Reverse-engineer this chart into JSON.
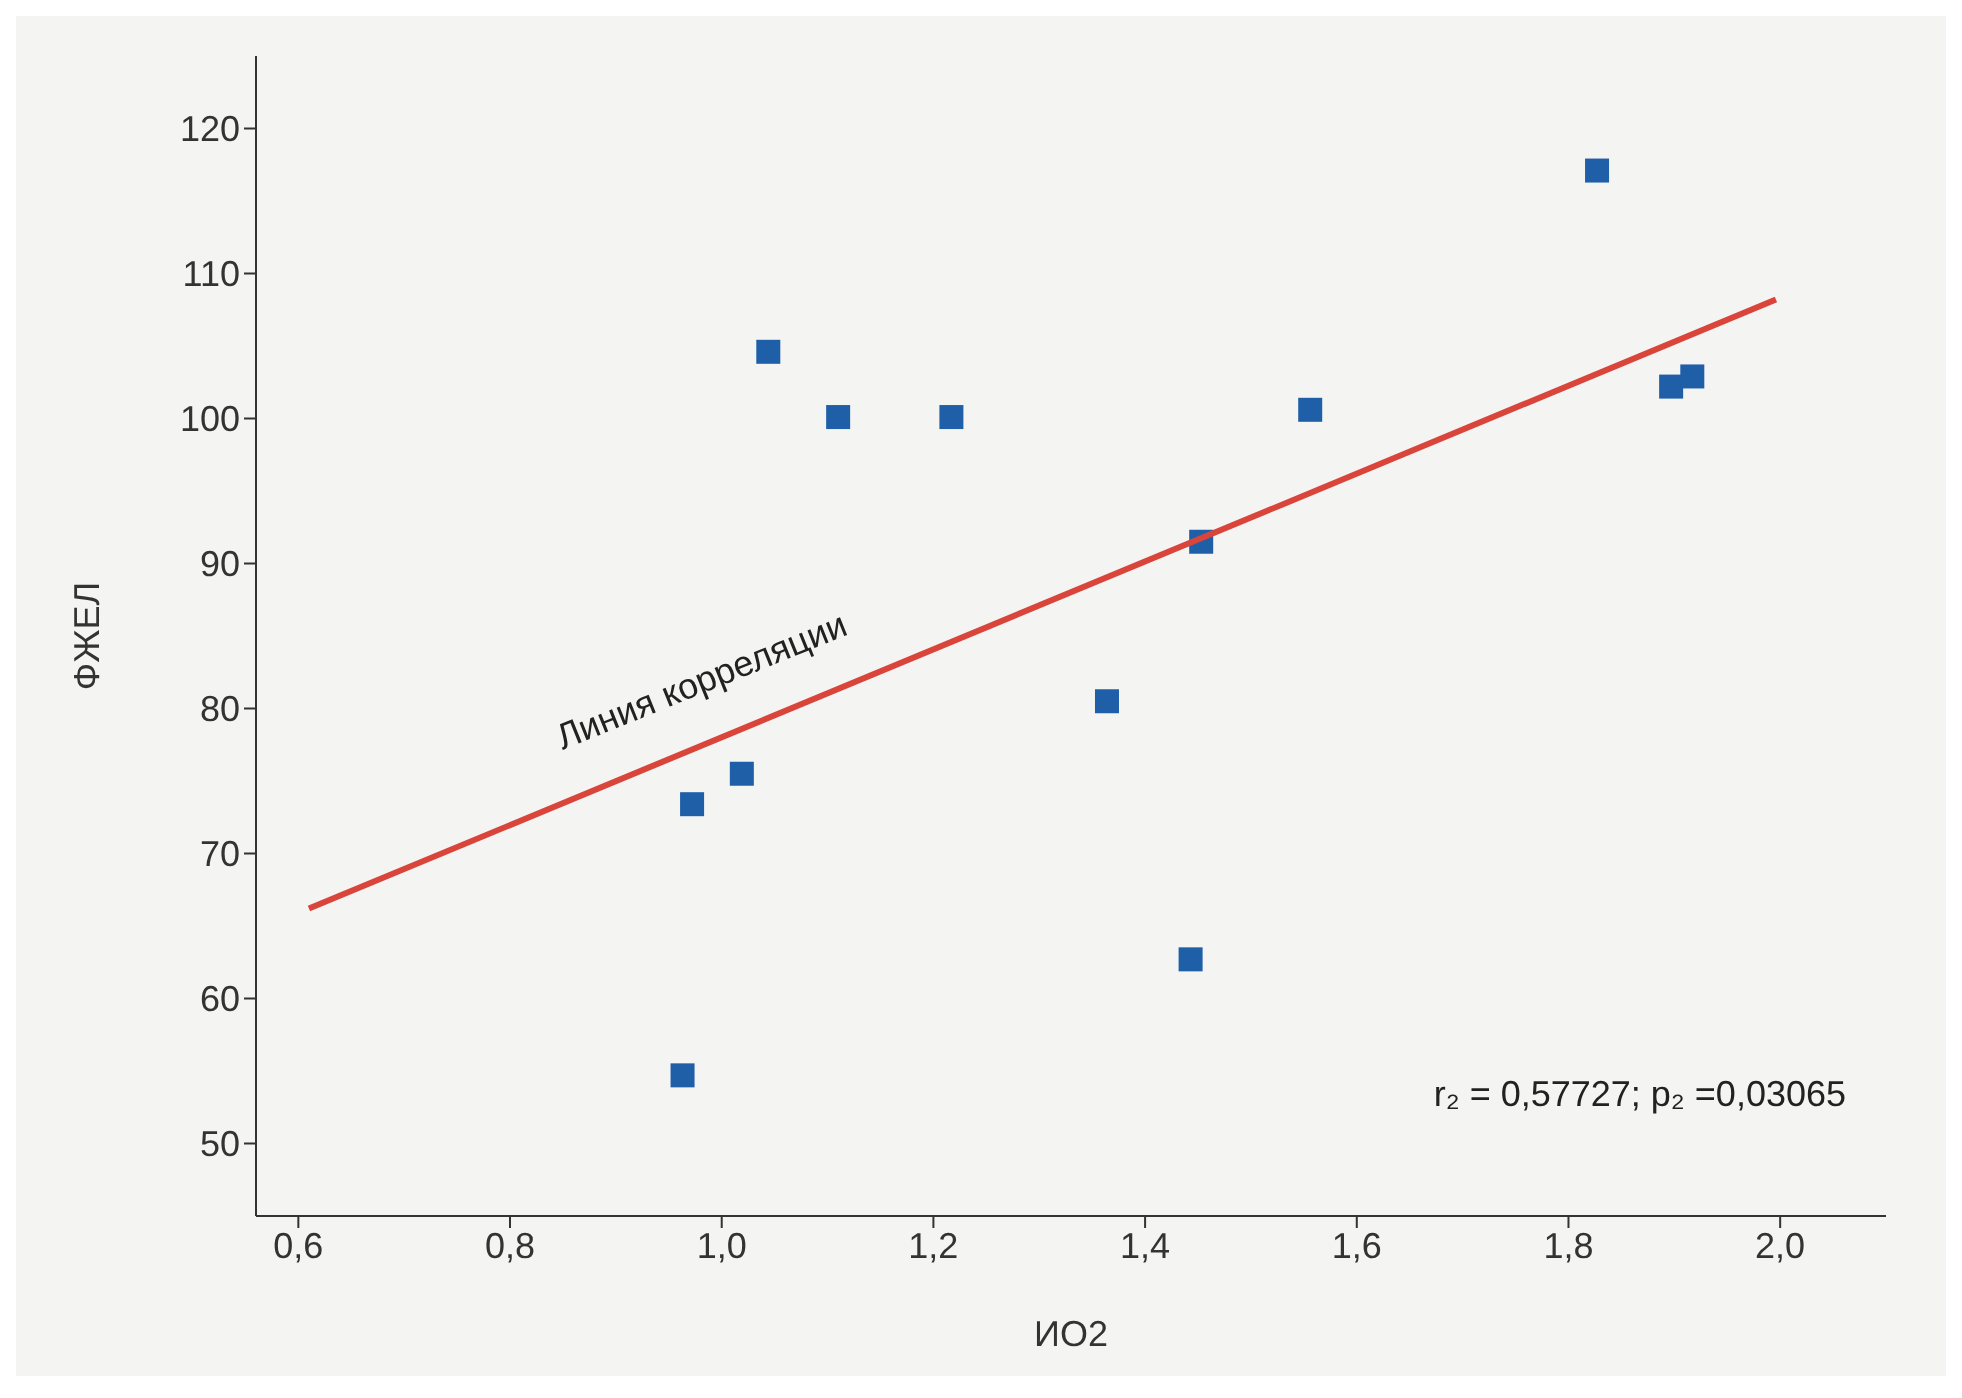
{
  "chart_data": {
    "type": "scatter",
    "xlabel": "ИО2",
    "ylabel": "ФЖЕЛ",
    "series": [
      {
        "marker": "square",
        "color": "#1f5fa8",
        "x": [
          0.963,
          0.972,
          1.019,
          1.044,
          1.11,
          1.217,
          1.364,
          1.443,
          1.453,
          1.556,
          1.827,
          1.897,
          1.917
        ],
        "values": [
          54.7,
          73.4,
          75.5,
          104.6,
          100.1,
          100.1,
          80.5,
          62.7,
          91.5,
          100.6,
          117.1,
          102.2,
          102.9
        ]
      },
      {
        "type": "line",
        "marker": "none",
        "color": "#d9453a",
        "x": [
          0.61,
          1.996
        ],
        "values": [
          66.2,
          108.2
        ]
      }
    ],
    "xlim": [
      0.56,
      2.1
    ],
    "ylim": [
      45,
      125
    ],
    "xticks": [
      {
        "value": 0.6,
        "label": "0,6"
      },
      {
        "value": 0.8,
        "label": "0,8"
      },
      {
        "value": 1.0,
        "label": "1,0"
      },
      {
        "value": 1.2,
        "label": "1,2"
      },
      {
        "value": 1.4,
        "label": "1,4"
      },
      {
        "value": 1.6,
        "label": "1,6"
      },
      {
        "value": 1.8,
        "label": "1,8"
      },
      {
        "value": 2.0,
        "label": "2,0"
      }
    ],
    "yticks": [
      50,
      60,
      70,
      80,
      90,
      100,
      110,
      120
    ],
    "grid": false,
    "legend": false,
    "annotations": [
      "Линия корреляции",
      "r₂ = 0,57727; p₂ =0,03065"
    ]
  }
}
